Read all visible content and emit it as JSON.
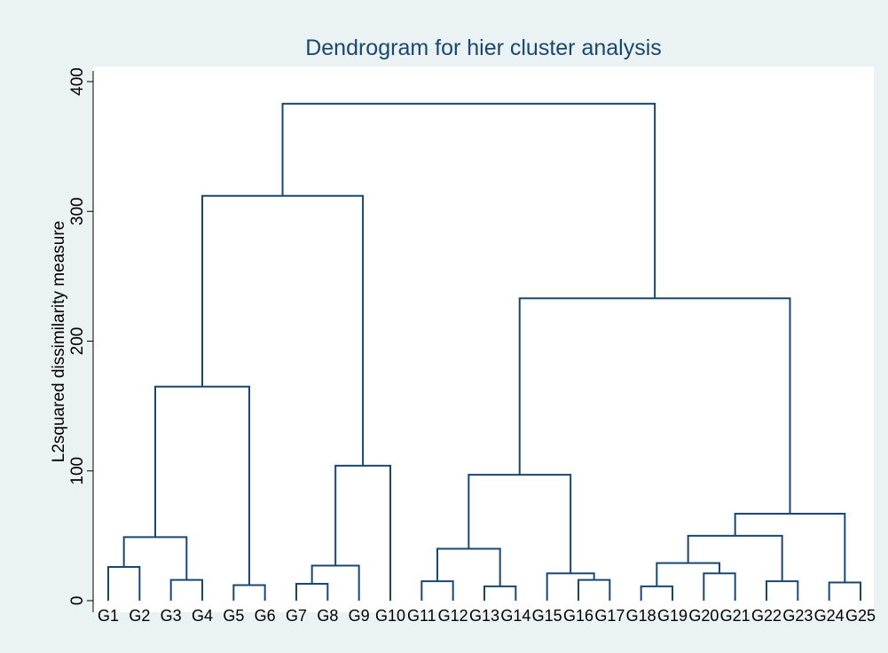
{
  "chart_data": {
    "type": "dendrogram",
    "title": "Dendrogram for hier cluster analysis",
    "y_label": "L2squared dissimilarity measure",
    "ylim": [
      0,
      400
    ],
    "yticks": [
      0,
      100,
      200,
      300,
      400
    ],
    "color": "#1a476f",
    "tree": {
      "height": 383,
      "children": [
        {
          "height": 312,
          "children": [
            {
              "height": 165,
              "children": [
                {
                  "height": 49,
                  "children": [
                    {
                      "height": 26,
                      "children": [
                        {
                          "label": "G1"
                        },
                        {
                          "label": "G2"
                        }
                      ]
                    },
                    {
                      "height": 16,
                      "children": [
                        {
                          "label": "G3"
                        },
                        {
                          "label": "G4"
                        }
                      ]
                    }
                  ]
                },
                {
                  "height": 12,
                  "children": [
                    {
                      "label": "G5"
                    },
                    {
                      "label": "G6"
                    }
                  ]
                }
              ]
            },
            {
              "height": 104,
              "children": [
                {
                  "height": 27,
                  "children": [
                    {
                      "height": 13,
                      "children": [
                        {
                          "label": "G7"
                        },
                        {
                          "label": "G8"
                        }
                      ]
                    },
                    {
                      "label": "G9"
                    }
                  ]
                },
                {
                  "label": "G10"
                }
              ]
            }
          ]
        },
        {
          "height": 233,
          "children": [
            {
              "height": 97,
              "children": [
                {
                  "height": 40,
                  "children": [
                    {
                      "height": 15,
                      "children": [
                        {
                          "label": "G11"
                        },
                        {
                          "label": "G12"
                        }
                      ]
                    },
                    {
                      "height": 11,
                      "children": [
                        {
                          "label": "G13"
                        },
                        {
                          "label": "G14"
                        }
                      ]
                    }
                  ]
                },
                {
                  "height": 21,
                  "children": [
                    {
                      "label": "G15"
                    },
                    {
                      "height": 16,
                      "children": [
                        {
                          "label": "G16"
                        },
                        {
                          "label": "G17"
                        }
                      ]
                    }
                  ]
                }
              ]
            },
            {
              "height": 67,
              "children": [
                {
                  "height": 50,
                  "children": [
                    {
                      "height": 29,
                      "children": [
                        {
                          "height": 11,
                          "children": [
                            {
                              "label": "G18"
                            },
                            {
                              "label": "G19"
                            }
                          ]
                        },
                        {
                          "height": 21,
                          "children": [
                            {
                              "label": "G20"
                            },
                            {
                              "label": "G21"
                            }
                          ]
                        }
                      ]
                    },
                    {
                      "height": 15,
                      "children": [
                        {
                          "label": "G22"
                        },
                        {
                          "label": "G23"
                        }
                      ]
                    }
                  ]
                },
                {
                  "height": 14,
                  "children": [
                    {
                      "label": "G24"
                    },
                    {
                      "label": "G25"
                    }
                  ]
                }
              ]
            }
          ]
        }
      ]
    }
  }
}
